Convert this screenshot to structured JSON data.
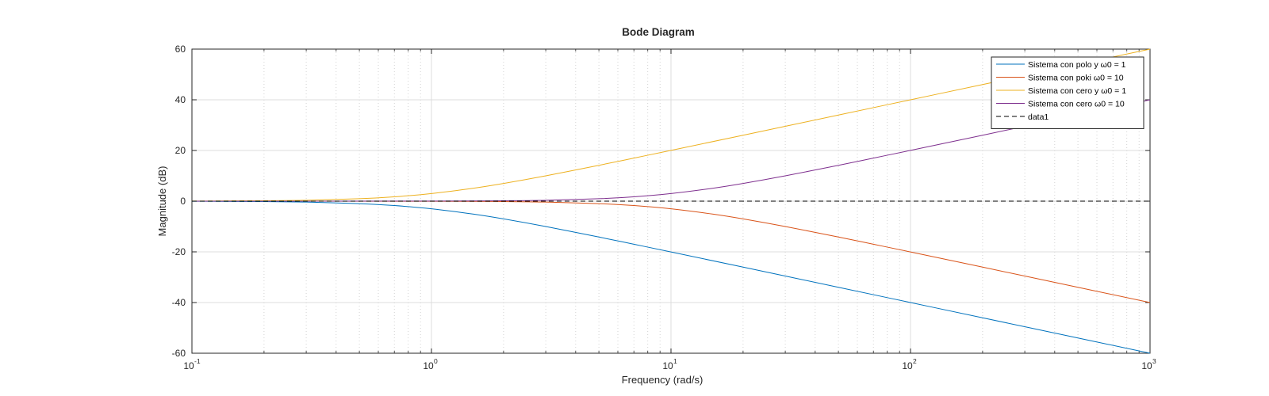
{
  "chart_data": {
    "type": "line",
    "title": "Bode Diagram",
    "xlabel": "Frequency  (rad/s)",
    "ylabel": "Magnitude (dB)",
    "xscale": "log",
    "xlim": [
      0.1,
      1000
    ],
    "ylim": [
      -60,
      60
    ],
    "x_ticks": [
      {
        "base": "10",
        "exp": "-1"
      },
      {
        "base": "10",
        "exp": "0"
      },
      {
        "base": "10",
        "exp": "1"
      },
      {
        "base": "10",
        "exp": "2"
      },
      {
        "base": "10",
        "exp": "3"
      }
    ],
    "y_ticks": [
      "60",
      "40",
      "20",
      "0",
      "-20",
      "-40",
      "-60"
    ],
    "grid": true,
    "legend_position": "top-right",
    "series": [
      {
        "name": "Sistema con polo y ω0 = 1",
        "color": "#0072BD",
        "x": [
          0.1,
          0.2,
          0.3,
          0.5,
          0.7,
          1,
          1.5,
          2,
          3,
          5,
          7,
          10,
          20,
          50,
          100,
          200,
          500,
          1000
        ],
        "y": [
          -0.04,
          -0.17,
          -0.37,
          -0.97,
          -1.73,
          -3.01,
          -5.12,
          -6.99,
          -10.0,
          -14.15,
          -17.0,
          -20.04,
          -26.03,
          -33.98,
          -40.0,
          -46.02,
          -53.98,
          -60.0
        ]
      },
      {
        "name": "Sistema con poki ω0 = 10",
        "color": "#D95319",
        "x": [
          0.1,
          1,
          2,
          3,
          5,
          7,
          10,
          15,
          20,
          30,
          50,
          70,
          100,
          200,
          500,
          1000
        ],
        "y": [
          0.0,
          -0.04,
          -0.17,
          -0.37,
          -0.97,
          -1.73,
          -3.01,
          -5.12,
          -6.99,
          -10.0,
          -14.15,
          -17.0,
          -20.04,
          -26.03,
          -33.98,
          -40.0
        ]
      },
      {
        "name": "Sistema con cero y ω0 = 1",
        "color": "#EDB120",
        "x": [
          0.1,
          0.2,
          0.3,
          0.5,
          0.7,
          1,
          1.5,
          2,
          3,
          5,
          7,
          10,
          20,
          50,
          100,
          200,
          500,
          1000
        ],
        "y": [
          0.04,
          0.17,
          0.37,
          0.97,
          1.73,
          3.01,
          5.12,
          6.99,
          10.0,
          14.15,
          17.0,
          20.04,
          26.03,
          33.98,
          40.0,
          46.02,
          53.98,
          60.0
        ]
      },
      {
        "name": "Sistema con cero ω0 = 10",
        "color": "#7E2F8E",
        "x": [
          0.1,
          1,
          2,
          3,
          5,
          7,
          10,
          15,
          20,
          30,
          50,
          70,
          100,
          200,
          500,
          1000
        ],
        "y": [
          0.0,
          0.04,
          0.17,
          0.37,
          0.97,
          1.73,
          3.01,
          5.12,
          6.99,
          10.0,
          14.15,
          17.0,
          20.04,
          26.03,
          33.98,
          40.0
        ]
      },
      {
        "name": "data1",
        "color": "#000000",
        "dashed": true,
        "x": [
          0.1,
          1000
        ],
        "y": [
          0,
          0
        ]
      }
    ]
  }
}
